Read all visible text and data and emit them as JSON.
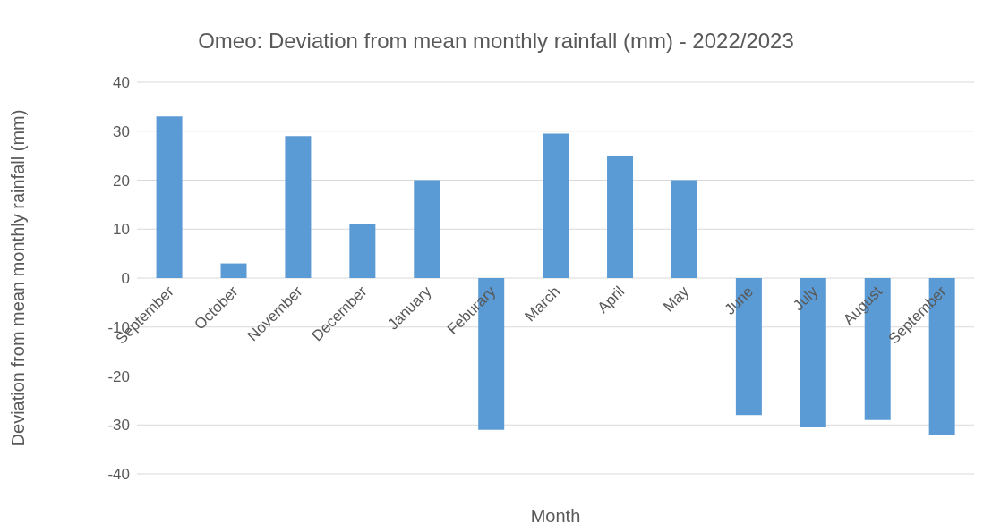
{
  "chart_data": {
    "type": "bar",
    "title": "Omeo: Deviation from mean monthly rainfall (mm) - 2022/2023",
    "xlabel": "Month",
    "ylabel": "Deviation from mean monthly rainfall (mm)",
    "categories": [
      "September",
      "October",
      "November",
      "December",
      "January",
      "Feburary",
      "March",
      "April",
      "May",
      "June",
      "July",
      "August",
      "September"
    ],
    "values": [
      33,
      3,
      29,
      11,
      20,
      -31,
      29.5,
      25,
      20,
      -28,
      -30.5,
      -29,
      -32
    ],
    "color": "#5b9bd5",
    "ylim": [
      -40,
      40
    ],
    "yticks": [
      -40,
      -30,
      -20,
      -10,
      0,
      10,
      20,
      30,
      40
    ],
    "grid": "y"
  }
}
